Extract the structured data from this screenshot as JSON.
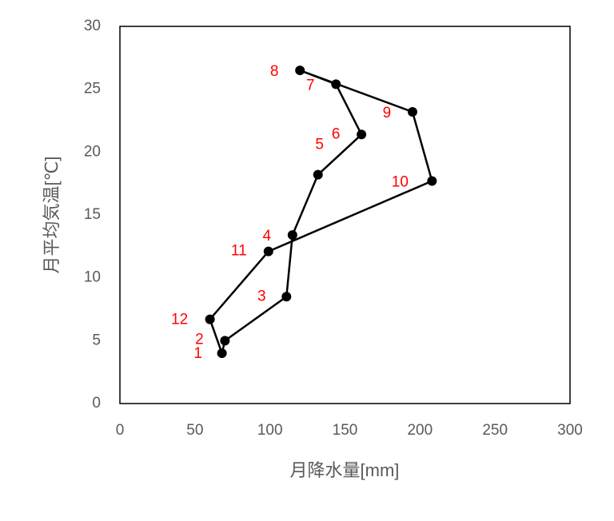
{
  "chart_data": {
    "type": "line",
    "x_label": "月降水量[mm]",
    "y_label": "月平均気温[℃]",
    "x": [
      68,
      70,
      111,
      115,
      132,
      161,
      144,
      120,
      195,
      208,
      99,
      60
    ],
    "values": [
      4.0,
      5.0,
      8.5,
      13.4,
      18.2,
      21.4,
      25.4,
      26.5,
      23.2,
      17.7,
      12.1,
      6.7
    ],
    "point_labels": [
      "1",
      "2",
      "3",
      "4",
      "5",
      "6",
      "7",
      "8",
      "9",
      "10",
      "11",
      "12"
    ],
    "color": "#000000",
    "label_color": "#ff0000",
    "closed": true,
    "xlim": [
      0,
      300
    ],
    "xticks": [
      0,
      50,
      100,
      150,
      200,
      250,
      300
    ],
    "ylim": [
      0,
      30
    ],
    "yticks": [
      0,
      5,
      10,
      15,
      20,
      25,
      30
    ],
    "grid": false
  }
}
